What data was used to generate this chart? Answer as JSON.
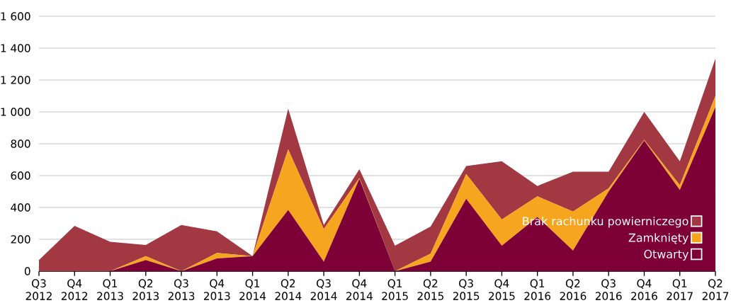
{
  "chart_data": {
    "type": "area",
    "stacked": true,
    "categories": [
      "Q3 2012",
      "Q4 2012",
      "Q1 2013",
      "Q2 2013",
      "Q3 2013",
      "Q4 2013",
      "Q1 2014",
      "Q2 2014",
      "Q3 2014",
      "Q4 2014",
      "Q1 2015",
      "Q2 2015",
      "Q3 2015",
      "Q4 2015",
      "Q1 2016",
      "Q2 2016",
      "Q3 2016",
      "Q4 2016",
      "Q1 2017",
      "Q2 2017"
    ],
    "series": [
      {
        "name": "Otwarty",
        "color": "#7d0037",
        "values": [
          0,
          0,
          0,
          70,
          0,
          80,
          95,
          385,
          60,
          580,
          0,
          60,
          455,
          160,
          340,
          130,
          500,
          820,
          510,
          1030
        ]
      },
      {
        "name": "Zamknięty",
        "color": "#f6a51f",
        "values": [
          0,
          0,
          0,
          25,
          0,
          35,
          0,
          380,
          205,
          5,
          0,
          50,
          155,
          165,
          130,
          245,
          20,
          5,
          30,
          70
        ]
      },
      {
        "name": "Brak rachunku powierniczego",
        "color": "#a23842",
        "values": [
          70,
          285,
          185,
          70,
          290,
          135,
          0,
          255,
          25,
          55,
          160,
          170,
          50,
          365,
          65,
          250,
          105,
          175,
          150,
          235
        ]
      }
    ],
    "ylim": [
      0,
      1600
    ],
    "yticks": [
      0,
      200,
      400,
      600,
      800,
      {
        "value": 1000,
        "label": "1 000"
      },
      {
        "value": 1200,
        "label": "1 200"
      },
      {
        "value": 1400,
        "label": "1 400"
      },
      {
        "value": 1600,
        "label": "1 600"
      }
    ],
    "grid": "y",
    "legend": "bottom right"
  }
}
